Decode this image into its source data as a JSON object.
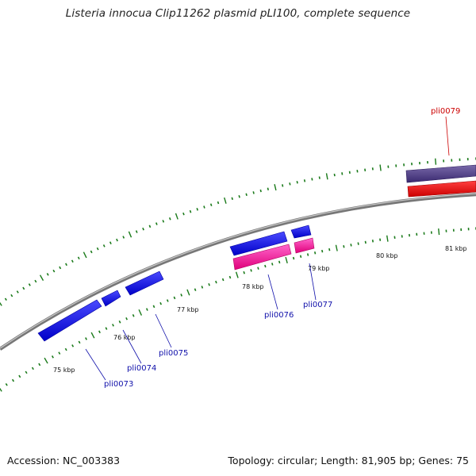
{
  "title": "Listeria innocua Clip11262 plasmid pLI100, complete sequence",
  "footer": {
    "accession": "Accession: NC_003383",
    "summary": "Topology: circular; Length: 81,905 bp; Genes: 75"
  },
  "colors": {
    "backbone": "#888888",
    "tick": "#1a7a1a",
    "forward_gene": "#1010ee",
    "reverse_gene": "#ff1aa0",
    "highlight_gene": "#4a3a8a",
    "highlight_gene_2": "#ee0000",
    "label_blue": "#1010aa",
    "label_red": "#cc0000"
  },
  "scale_labels": [
    "75 kbp",
    "76 kbp",
    "77 kbp",
    "78 kbp",
    "79 kbp",
    "80 kbp",
    "81 kbp"
  ],
  "gene_labels": [
    {
      "id": "pli0073",
      "label": "pli0073"
    },
    {
      "id": "pli0074",
      "label": "pli0074"
    },
    {
      "id": "pli0075",
      "label": "pli0075"
    },
    {
      "id": "pli0076",
      "label": "pli0076"
    },
    {
      "id": "pli0077",
      "label": "pli0077"
    },
    {
      "id": "pli0079",
      "label": "pli0079"
    }
  ]
}
